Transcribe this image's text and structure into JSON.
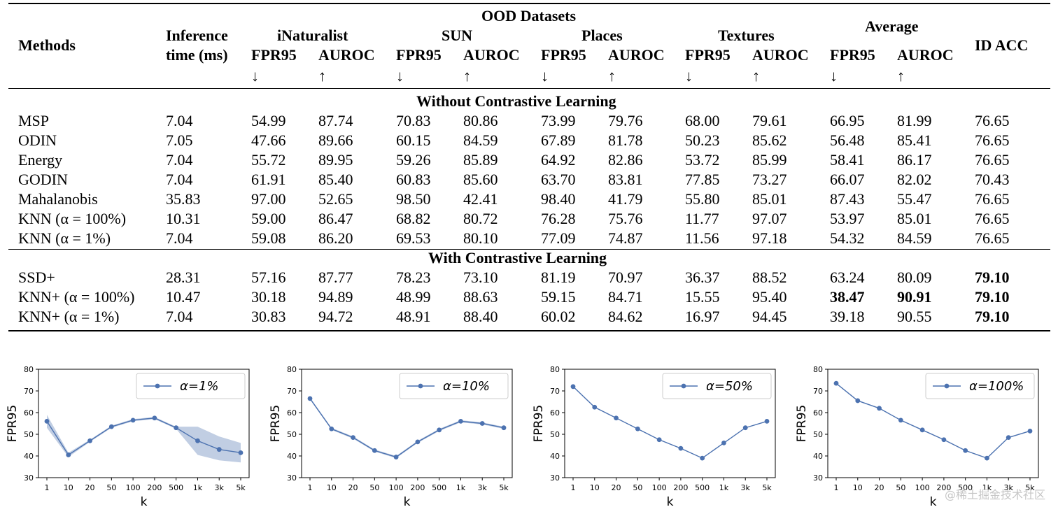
{
  "table": {
    "group_header": "OOD Datasets",
    "methods_header": "Methods",
    "inference_header": [
      "Inference",
      "time (ms)"
    ],
    "datasets": [
      "iNaturalist",
      "SUN",
      "Places",
      "Textures"
    ],
    "average_header": "Average",
    "id_acc_header": "ID ACC",
    "metric_fpr": "FPR95",
    "metric_auroc": "AUROC",
    "arrow_down": "↓",
    "arrow_up": "↑",
    "section_without": "Without Contrastive Learning",
    "section_with": "With Contrastive Learning",
    "rows_without": [
      {
        "method": "MSP",
        "time": "7.04",
        "vals": [
          "54.99",
          "87.74",
          "70.83",
          "80.86",
          "73.99",
          "79.76",
          "68.00",
          "79.61",
          "66.95",
          "81.99"
        ],
        "acc": "76.65"
      },
      {
        "method": "ODIN",
        "time": "7.05",
        "vals": [
          "47.66",
          "89.66",
          "60.15",
          "84.59",
          "67.89",
          "81.78",
          "50.23",
          "85.62",
          "56.48",
          "85.41"
        ],
        "acc": "76.65"
      },
      {
        "method": "Energy",
        "time": "7.04",
        "vals": [
          "55.72",
          "89.95",
          "59.26",
          "85.89",
          "64.92",
          "82.86",
          "53.72",
          "85.99",
          "58.41",
          "86.17"
        ],
        "acc": "76.65"
      },
      {
        "method": "GODIN",
        "time": "7.04",
        "vals": [
          "61.91",
          "85.40",
          "60.83",
          "85.60",
          "63.70",
          "83.81",
          "77.85",
          "73.27",
          "66.07",
          "82.02"
        ],
        "acc": "70.43"
      },
      {
        "method": "Mahalanobis",
        "time": "35.83",
        "vals": [
          "97.00",
          "52.65",
          "98.50",
          "42.41",
          "98.40",
          "41.79",
          "55.80",
          "85.01",
          "87.43",
          "55.47"
        ],
        "acc": "76.65"
      },
      {
        "method": "KNN (α = 100%)",
        "time": "10.31",
        "vals": [
          "59.00",
          "86.47",
          "68.82",
          "80.72",
          "76.28",
          "75.76",
          "11.77",
          "97.07",
          "53.97",
          "85.01"
        ],
        "acc": "76.65"
      },
      {
        "method": "KNN (α = 1%)",
        "time": "7.04",
        "vals": [
          "59.08",
          "86.20",
          "69.53",
          "80.10",
          "77.09",
          "74.87",
          "11.56",
          "97.18",
          "54.32",
          "84.59"
        ],
        "acc": "76.65"
      }
    ],
    "rows_with": [
      {
        "method": "SSD+",
        "time": "28.31",
        "vals": [
          "57.16",
          "87.77",
          "78.23",
          "73.10",
          "81.19",
          "70.97",
          "36.37",
          "88.52",
          "63.24",
          "80.09"
        ],
        "acc": "79.10",
        "bold_vals": [],
        "bold_acc": true
      },
      {
        "method": "KNN+ (α = 100%)",
        "time": "10.47",
        "vals": [
          "30.18",
          "94.89",
          "48.99",
          "88.63",
          "59.15",
          "84.71",
          "15.55",
          "95.40",
          "38.47",
          "90.91"
        ],
        "acc": "79.10",
        "bold_vals": [
          8,
          9
        ],
        "bold_acc": true
      },
      {
        "method": "KNN+ (α = 1%)",
        "time": "7.04",
        "vals": [
          "30.83",
          "94.72",
          "48.91",
          "88.40",
          "60.02",
          "84.62",
          "16.97",
          "94.45",
          "39.18",
          "90.55"
        ],
        "acc": "79.10",
        "bold_vals": [],
        "bold_acc": true
      }
    ]
  },
  "chart_data": [
    {
      "type": "line",
      "legend": "α=1%",
      "x": [
        "1",
        "10",
        "20",
        "50",
        "100",
        "200",
        "500",
        "1k",
        "3k",
        "5k"
      ],
      "y": [
        56,
        40.5,
        47,
        53.5,
        56.5,
        57.5,
        53,
        47,
        43,
        41.5
      ],
      "band_low": [
        53,
        39.5,
        46.5,
        53,
        56,
        57,
        52.5,
        40.5,
        38,
        37
      ],
      "band_high": [
        59,
        41.5,
        47.5,
        54,
        57,
        58,
        53.5,
        53.5,
        49,
        46
      ],
      "ylabel": "FPR95",
      "xlabel": "k",
      "ylim": [
        30,
        80
      ],
      "yticks": [
        30,
        40,
        50,
        60,
        70,
        80
      ],
      "color": "#4c72b0",
      "legend_position": "top-right"
    },
    {
      "type": "line",
      "legend": "α=10%",
      "x": [
        "1",
        "10",
        "20",
        "50",
        "100",
        "200",
        "500",
        "1k",
        "3k",
        "5k"
      ],
      "y": [
        66.5,
        52.5,
        48.5,
        42.5,
        39.5,
        46.5,
        52,
        56,
        55,
        53
      ],
      "band_low": [
        66,
        52,
        48,
        42,
        39,
        46,
        51.5,
        55.5,
        54.5,
        52.5
      ],
      "band_high": [
        67,
        53,
        49,
        43,
        40,
        47,
        52.5,
        56.5,
        55.5,
        53.5
      ],
      "ylabel": "FPR95",
      "xlabel": "k",
      "ylim": [
        30,
        80
      ],
      "yticks": [
        30,
        40,
        50,
        60,
        70,
        80
      ],
      "color": "#4c72b0",
      "legend_position": "top-right"
    },
    {
      "type": "line",
      "legend": "α=50%",
      "x": [
        "1",
        "10",
        "20",
        "50",
        "100",
        "200",
        "500",
        "1k",
        "3k",
        "5k"
      ],
      "y": [
        72,
        62.5,
        57.5,
        52.5,
        47.5,
        43.5,
        39,
        46,
        53,
        56
      ],
      "ylabel": "FPR95",
      "xlabel": "k",
      "ylim": [
        30,
        80
      ],
      "yticks": [
        30,
        40,
        50,
        60,
        70,
        80
      ],
      "color": "#4c72b0",
      "legend_position": "top-right"
    },
    {
      "type": "line",
      "legend": "α=100%",
      "x": [
        "1",
        "10",
        "20",
        "50",
        "100",
        "200",
        "500",
        "1k",
        "3k",
        "5k"
      ],
      "y": [
        73.5,
        65.5,
        62,
        56.5,
        52,
        47.5,
        42.5,
        39,
        48.5,
        51.5
      ],
      "ylabel": "FPR95",
      "xlabel": "k",
      "ylim": [
        30,
        80
      ],
      "yticks": [
        30,
        40,
        50,
        60,
        70,
        80
      ],
      "color": "#4c72b0",
      "legend_position": "top-right"
    }
  ],
  "watermark": "@稀土掘金技术社区"
}
